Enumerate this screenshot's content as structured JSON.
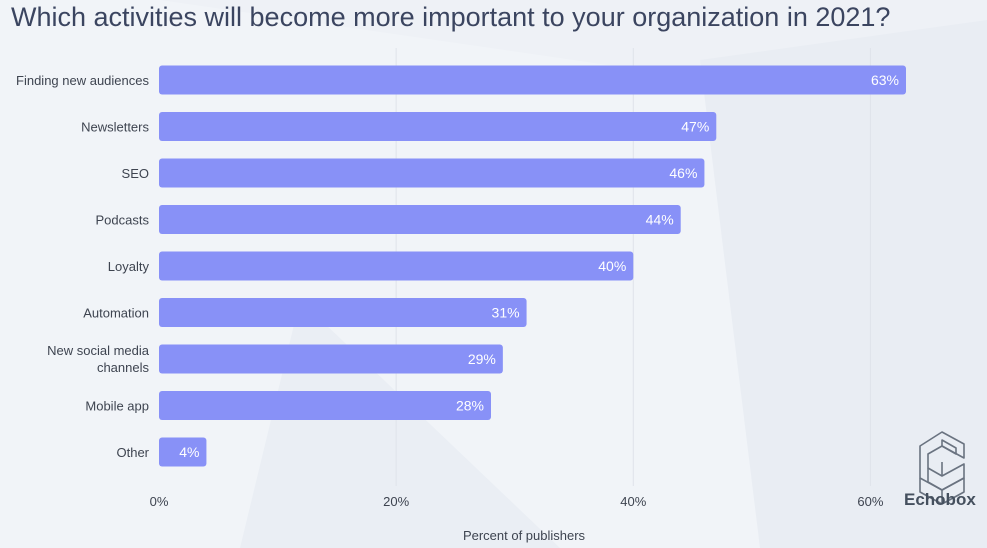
{
  "title": "Which activities will become more important to your organization in 2021?",
  "brand": {
    "name": "Echobox"
  },
  "chart_data": {
    "type": "bar",
    "orientation": "horizontal",
    "title": "Which activities will become more important to your organization in 2021?",
    "xlabel": "Percent of publishers",
    "ylabel": "",
    "categories": [
      "Finding new audiences",
      "Newsletters",
      "SEO",
      "Podcasts",
      "Loyalty",
      "Automation",
      "New social media channels",
      "Mobile app",
      "Other"
    ],
    "values": [
      63,
      47,
      46,
      44,
      40,
      31,
      29,
      28,
      4
    ],
    "value_labels": [
      "63%",
      "47%",
      "46%",
      "44%",
      "40%",
      "31%",
      "29%",
      "28%",
      "4%"
    ],
    "xlim": [
      0,
      70
    ],
    "xticks": [
      0,
      20,
      40,
      60
    ],
    "xtick_labels": [
      "0%",
      "20%",
      "40%",
      "60%"
    ],
    "grid": true,
    "colors": {
      "bar": "#8891f7",
      "grid": "#dfe3ea"
    }
  }
}
